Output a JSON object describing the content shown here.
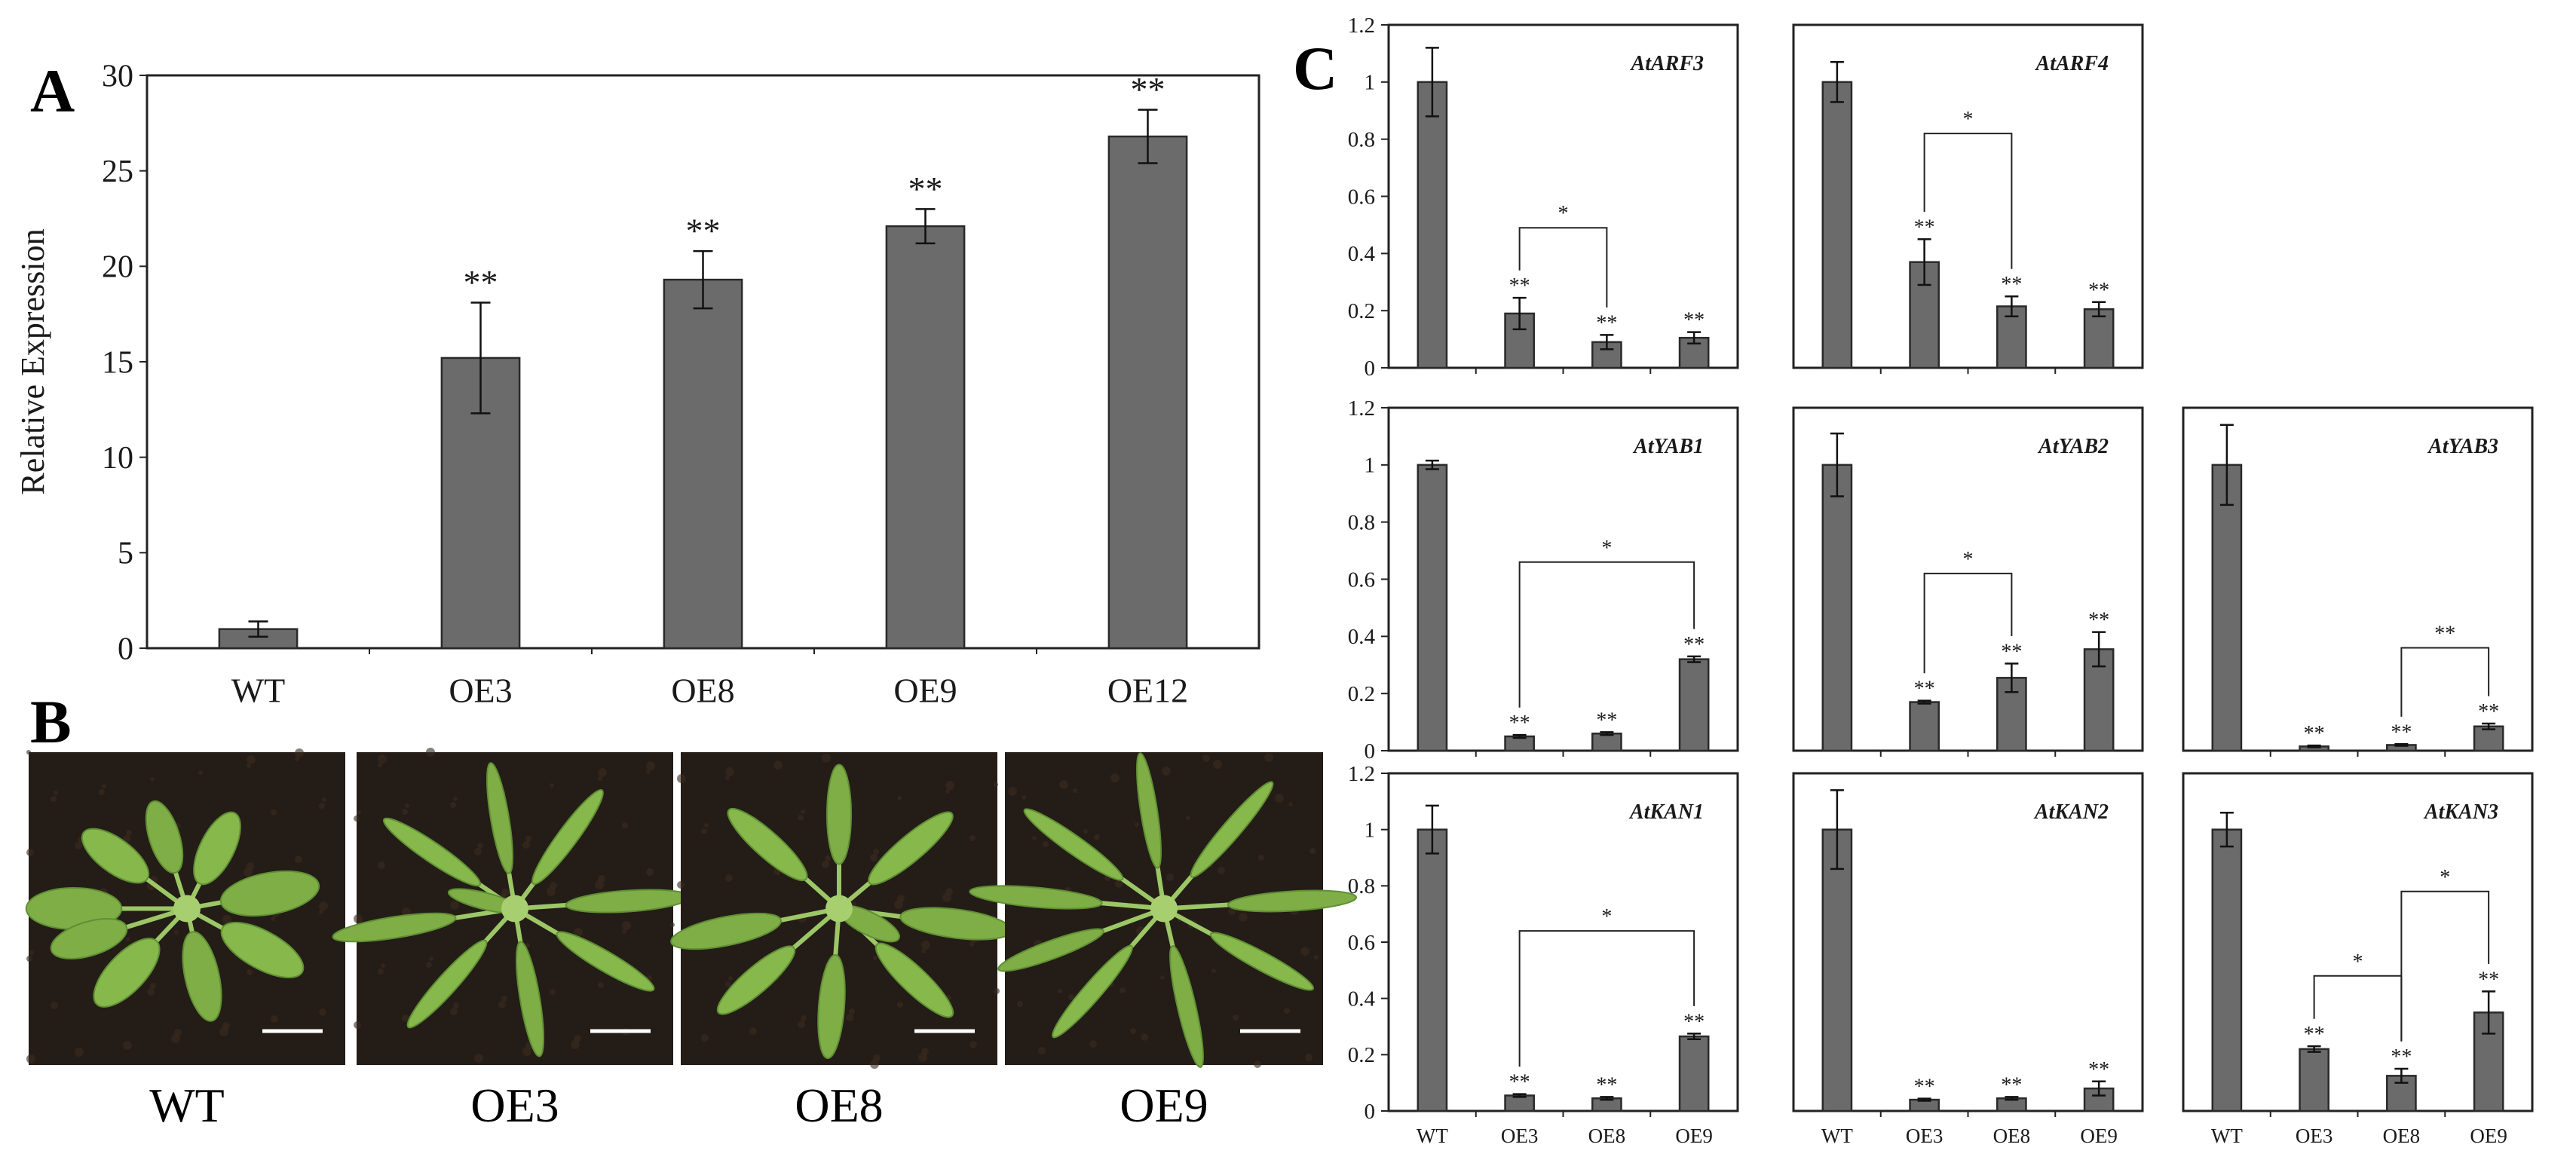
{
  "panel_labels": {
    "a": "A",
    "b": "B",
    "c": "C"
  },
  "colors": {
    "bar": "#6b6b6b",
    "bar_stroke": "#2a2a2a",
    "photo_bg": "#241c16",
    "leaf": "#7fae47",
    "scale_bar": "#ffffff"
  },
  "chart_data": [
    {
      "id": "A",
      "type": "bar",
      "ylabel": "Relative Expression",
      "categories": [
        "WT",
        "OE3",
        "OE8",
        "OE9",
        "OE12"
      ],
      "values": [
        1.0,
        15.2,
        19.3,
        22.1,
        26.8
      ],
      "errors": [
        0.4,
        2.9,
        1.5,
        0.9,
        1.4
      ],
      "significance": [
        "",
        "**",
        "**",
        "**",
        "**"
      ],
      "ylim": [
        0,
        30
      ],
      "yticks": [
        "0",
        "5",
        "10",
        "15",
        "20",
        "25",
        "30"
      ],
      "grid": false,
      "brackets": []
    },
    {
      "id": "ARF3",
      "type": "bar",
      "title": "AtARF3",
      "categories": [
        "WT",
        "OE3",
        "OE8",
        "OE9"
      ],
      "values": [
        1.0,
        0.19,
        0.09,
        0.105
      ],
      "errors": [
        0.12,
        0.055,
        0.025,
        0.02
      ],
      "significance": [
        "",
        "**",
        "**",
        "**"
      ],
      "ylim": [
        0,
        1.2
      ],
      "yticks": [
        "0",
        "0.2",
        "0.4",
        "0.6",
        "0.8",
        "1",
        "1.2"
      ],
      "show_xticks": false,
      "brackets": [
        {
          "from": 1,
          "to": 2,
          "y": 0.49,
          "label": "*"
        }
      ]
    },
    {
      "id": "ARF4",
      "type": "bar",
      "title": "AtARF4",
      "categories": [
        "WT",
        "OE3",
        "OE8",
        "OE9"
      ],
      "values": [
        1.0,
        0.37,
        0.215,
        0.205
      ],
      "errors": [
        0.07,
        0.08,
        0.035,
        0.025
      ],
      "significance": [
        "",
        "**",
        "**",
        "**"
      ],
      "ylim": [
        0,
        1.2
      ],
      "yticks": [],
      "show_xticks": false,
      "brackets": [
        {
          "from": 1,
          "to": 2,
          "y": 0.82,
          "label": "*"
        }
      ]
    },
    {
      "id": "YAB1",
      "type": "bar",
      "title": "AtYAB1",
      "categories": [
        "WT",
        "OE3",
        "OE8",
        "OE9"
      ],
      "values": [
        1.0,
        0.05,
        0.06,
        0.32
      ],
      "errors": [
        0.015,
        0.005,
        0.005,
        0.01
      ],
      "significance": [
        "",
        "**",
        "**",
        "**"
      ],
      "ylim": [
        0,
        1.2
      ],
      "yticks": [
        "0",
        "0.2",
        "0.4",
        "0.6",
        "0.8",
        "1",
        "1.2"
      ],
      "show_xticks": false,
      "brackets": [
        {
          "from": 1,
          "to": 3,
          "y": 0.66,
          "label": "*"
        }
      ]
    },
    {
      "id": "YAB2",
      "type": "bar",
      "title": "AtYAB2",
      "categories": [
        "WT",
        "OE3",
        "OE8",
        "OE9"
      ],
      "values": [
        1.0,
        0.17,
        0.255,
        0.355
      ],
      "errors": [
        0.11,
        0.005,
        0.05,
        0.06
      ],
      "significance": [
        "",
        "**",
        "**",
        "**"
      ],
      "ylim": [
        0,
        1.2
      ],
      "yticks": [],
      "show_xticks": false,
      "brackets": [
        {
          "from": 1,
          "to": 2,
          "y": 0.62,
          "label": "*"
        }
      ]
    },
    {
      "id": "YAB3",
      "type": "bar",
      "title": "AtYAB3",
      "categories": [
        "WT",
        "OE3",
        "OE8",
        "OE9"
      ],
      "values": [
        1.0,
        0.015,
        0.02,
        0.085
      ],
      "errors": [
        0.14,
        0.003,
        0.003,
        0.01
      ],
      "significance": [
        "",
        "**",
        "**",
        "**"
      ],
      "ylim": [
        0,
        1.2
      ],
      "yticks": [],
      "show_xticks": false,
      "brackets": [
        {
          "from": 2,
          "to": 3,
          "y": 0.36,
          "label": "**"
        }
      ]
    },
    {
      "id": "KAN1",
      "type": "bar",
      "title": "AtKAN1",
      "categories": [
        "WT",
        "OE3",
        "OE8",
        "OE9"
      ],
      "values": [
        1.0,
        0.055,
        0.045,
        0.265
      ],
      "errors": [
        0.085,
        0.005,
        0.005,
        0.01
      ],
      "significance": [
        "",
        "**",
        "**",
        "**"
      ],
      "ylim": [
        0,
        1.2
      ],
      "yticks": [
        "0",
        "0.2",
        "0.4",
        "0.6",
        "0.8",
        "1",
        "1.2"
      ],
      "show_xticks": true,
      "brackets": [
        {
          "from": 1,
          "to": 3,
          "y": 0.64,
          "label": "*"
        }
      ]
    },
    {
      "id": "KAN2",
      "type": "bar",
      "title": "AtKAN2",
      "categories": [
        "WT",
        "OE3",
        "OE8",
        "OE9"
      ],
      "values": [
        1.0,
        0.04,
        0.045,
        0.08
      ],
      "errors": [
        0.14,
        0.004,
        0.005,
        0.025
      ],
      "significance": [
        "",
        "**",
        "**",
        "**"
      ],
      "ylim": [
        0,
        1.2
      ],
      "yticks": [],
      "show_xticks": true,
      "brackets": []
    },
    {
      "id": "KAN3",
      "type": "bar",
      "title": "AtKAN3",
      "categories": [
        "WT",
        "OE3",
        "OE8",
        "OE9"
      ],
      "values": [
        1.0,
        0.22,
        0.125,
        0.35
      ],
      "errors": [
        0.06,
        0.01,
        0.025,
        0.075
      ],
      "significance": [
        "",
        "**",
        "**",
        "**"
      ],
      "ylim": [
        0,
        1.2
      ],
      "yticks": [],
      "show_xticks": true,
      "brackets": [
        {
          "from": 1,
          "to": 2,
          "y": 0.48,
          "label": "*"
        },
        {
          "from": 2,
          "to": 3,
          "y": 0.78,
          "label": "*"
        }
      ]
    }
  ],
  "photos": [
    {
      "label": "WT"
    },
    {
      "label": "OE3"
    },
    {
      "label": "OE8"
    },
    {
      "label": "OE9"
    }
  ]
}
